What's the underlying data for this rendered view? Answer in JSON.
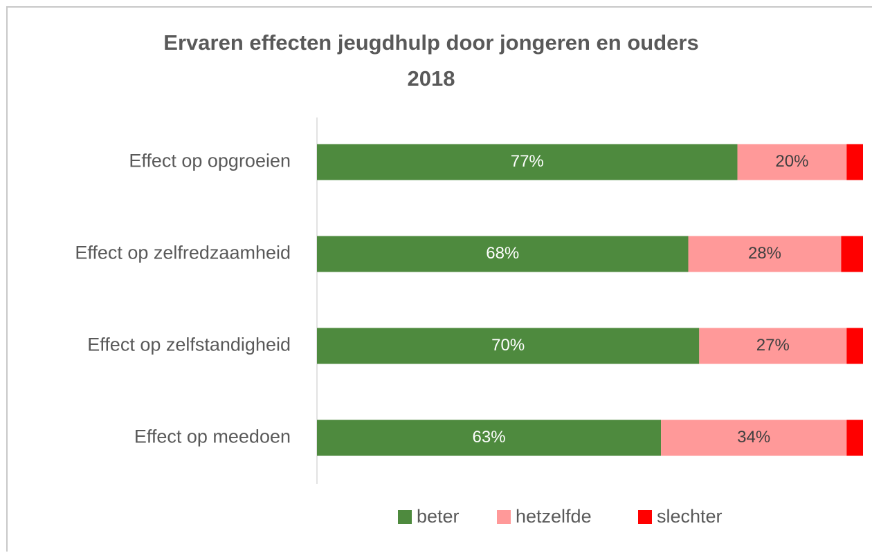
{
  "chart_data": {
    "type": "stacked_bar_horizontal",
    "title": [
      "Ervaren effecten jeugdhulp door jongeren en ouders",
      "2018"
    ],
    "categories": [
      "Effect op opgroeien",
      "Effect op zelfredzaamheid",
      "Effect op zelfstandigheid",
      "Effect op meedoen"
    ],
    "series": [
      {
        "name": "beter",
        "color": "#4e8a3e",
        "values": [
          77,
          68,
          70,
          63
        ],
        "value_labels": [
          "77%",
          "68%",
          "70%",
          "63%"
        ],
        "label_color": "#ffffff"
      },
      {
        "name": "hetzelfde",
        "color": "#ff9999",
        "values": [
          20,
          28,
          27,
          34
        ],
        "value_labels": [
          "20%",
          "28%",
          "27%",
          "34%"
        ],
        "label_color": "#404040"
      },
      {
        "name": "slechter",
        "color": "#ff0000",
        "values": [
          3,
          4,
          3,
          3
        ]
      }
    ],
    "xlim": [
      0,
      100
    ],
    "legend": "bottom"
  }
}
